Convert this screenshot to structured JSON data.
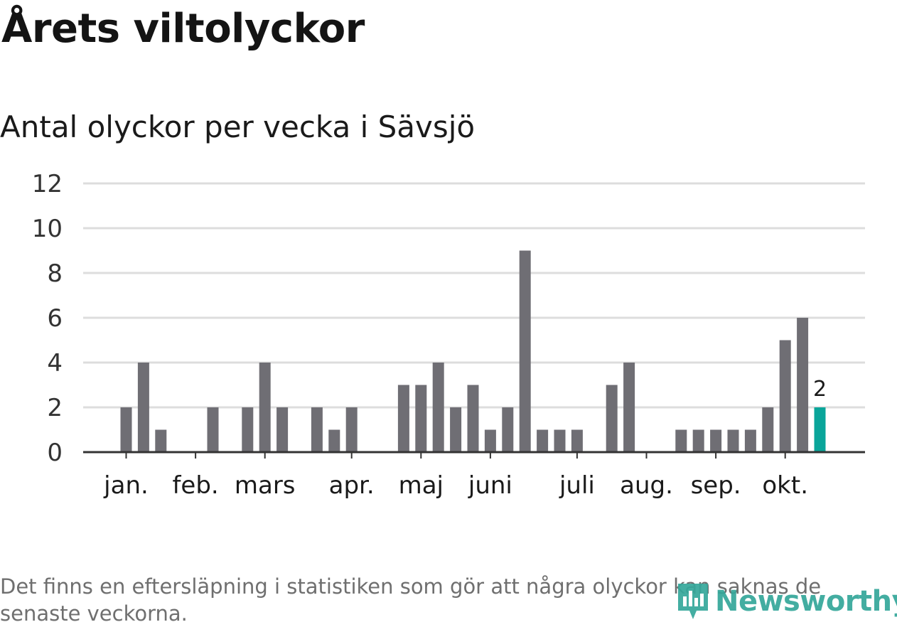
{
  "title": "Årets viltolyckor",
  "subtitle": "Antal olyckor per vecka i Sävsjö",
  "footnote": "Det finns en eftersläpning i statistiken som gör att några olyckor kan saknas de senaste veckorna.",
  "brand": {
    "name": "Newsworthy",
    "color": "#34a79a",
    "icon": "newsworthy-logo-icon"
  },
  "colors": {
    "bar": "#6f6e74",
    "highlight": "#0aa59a",
    "grid": "#dddddd",
    "axis": "#333333"
  },
  "chart_data": {
    "type": "bar",
    "xlabel": "",
    "ylabel": "",
    "ylim": [
      0,
      12
    ],
    "yticks": [
      "0",
      "2",
      "4",
      "6",
      "8",
      "10",
      "12"
    ],
    "week_positions": "weekly bars over one year, each bar one week, starting at the second week of January",
    "x": [
      1,
      2,
      3,
      4,
      5,
      6,
      7,
      8,
      9,
      10,
      11,
      12,
      13,
      14,
      15,
      16,
      17,
      18,
      19,
      20,
      21,
      22,
      23,
      24,
      25,
      26,
      27,
      28,
      29,
      30,
      31,
      32,
      33,
      34,
      35,
      36,
      37,
      38,
      39,
      40,
      41
    ],
    "values": [
      2,
      4,
      1,
      0,
      0,
      2,
      0,
      2,
      4,
      2,
      0,
      2,
      1,
      2,
      0,
      0,
      3,
      3,
      4,
      2,
      3,
      1,
      2,
      9,
      1,
      1,
      1,
      0,
      3,
      4,
      0,
      0,
      1,
      1,
      1,
      1,
      1,
      2,
      5,
      6,
      2
    ],
    "highlight_index": 40,
    "highlight_label": "2",
    "month_labels": [
      {
        "label": "jan.",
        "week": 1.5
      },
      {
        "label": "feb.",
        "week": 5.5
      },
      {
        "label": "mars",
        "week": 9.5
      },
      {
        "label": "apr.",
        "week": 14.5
      },
      {
        "label": "maj",
        "week": 18.5
      },
      {
        "label": "juni",
        "week": 22.5
      },
      {
        "label": "juli",
        "week": 27.5
      },
      {
        "label": "aug.",
        "week": 31.5
      },
      {
        "label": "sep.",
        "week": 35.5
      },
      {
        "label": "okt.",
        "week": 39.5
      }
    ],
    "grid": true
  }
}
